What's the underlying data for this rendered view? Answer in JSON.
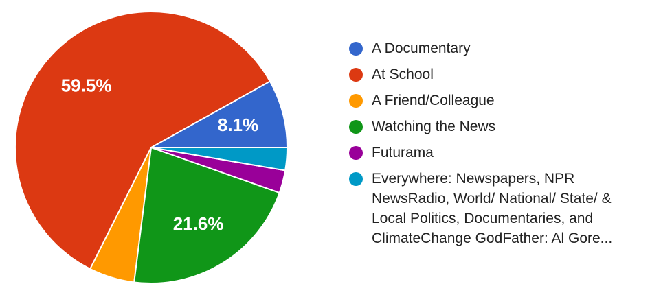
{
  "chart_data": {
    "type": "pie",
    "slices": [
      {
        "label": "A Documentary",
        "value": 8.1,
        "color": "#3366cc",
        "value_label": "8.1%"
      },
      {
        "label": "At School",
        "value": 59.5,
        "color": "#dc3912",
        "value_label": "59.5%"
      },
      {
        "label": "A Friend/Colleague",
        "value": 5.4,
        "color": "#ff9900",
        "value_label": ""
      },
      {
        "label": "Watching the News",
        "value": 21.6,
        "color": "#109618",
        "value_label": "21.6%"
      },
      {
        "label": "Futurama",
        "value": 2.7,
        "color": "#990099",
        "value_label": ""
      },
      {
        "label": "Everywhere: Newspapers, NPR NewsRadio, World/ National/ State/ & Local Politics, Documentaries, and ClimateChange GodFather: Al Gore...",
        "value": 2.7,
        "color": "#0099c6",
        "value_label": ""
      }
    ],
    "start_direction": "3 o'clock",
    "direction": "counterclockwise",
    "legend_position": "right"
  }
}
